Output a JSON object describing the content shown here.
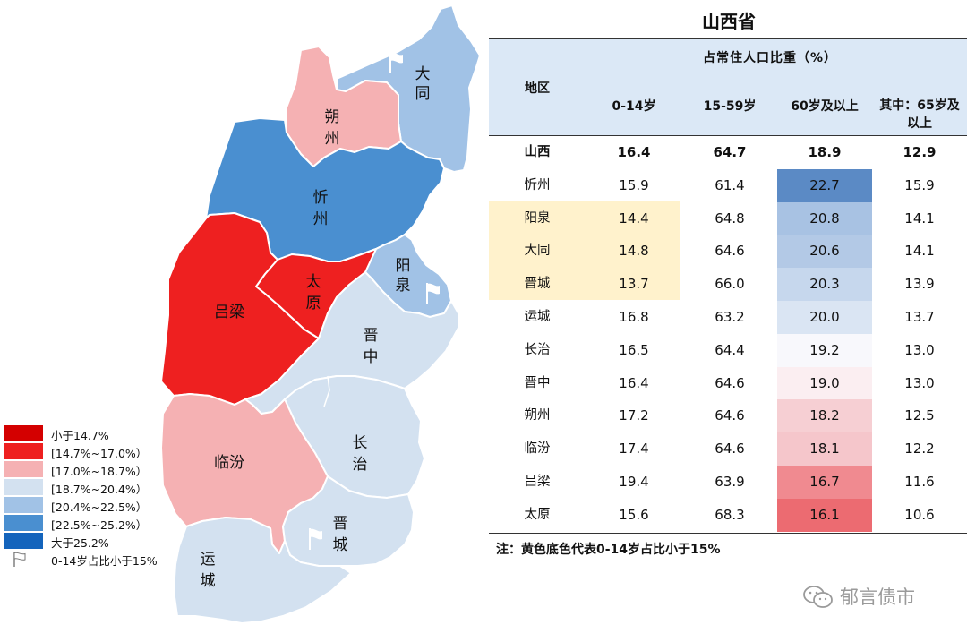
{
  "legend": {
    "items": [
      {
        "label": "小于14.7%",
        "color": "#d40000"
      },
      {
        "label": "[14.7%~17.0%）",
        "color": "#ee2020"
      },
      {
        "label": "[17.0%~18.7%）",
        "color": "#f5b1b3"
      },
      {
        "label": "[18.7%~20.4%）",
        "color": "#d3e1f0"
      },
      {
        "label": "[20.4%~22.5%）",
        "color": "#a1c2e6"
      },
      {
        "label": "[22.5%~25.2%）",
        "color": "#4a8fd0"
      },
      {
        "label": "大于25.2%",
        "color": "#1464bc"
      }
    ],
    "flag_label": "0-14岁占比小于15%"
  },
  "map": {
    "cities": [
      {
        "id": "datong",
        "name": "大同",
        "color": "#a1c2e6",
        "flag": true
      },
      {
        "id": "shuozhou",
        "name": "朔州",
        "color": "#f5b1b3",
        "flag": false
      },
      {
        "id": "xinzhou",
        "name": "忻州",
        "color": "#4a8fd0",
        "flag": false
      },
      {
        "id": "yangquan",
        "name": "阳泉",
        "color": "#a1c2e6",
        "flag": true
      },
      {
        "id": "taiyuan",
        "name": "太原",
        "color": "#ee2020",
        "flag": false
      },
      {
        "id": "lvliang",
        "name": "吕梁",
        "color": "#ee2020",
        "flag": false
      },
      {
        "id": "jinzhong",
        "name": "晋中",
        "color": "#d3e1f0",
        "flag": false
      },
      {
        "id": "changzhi",
        "name": "长治",
        "color": "#d3e1f0",
        "flag": false
      },
      {
        "id": "linfen",
        "name": "临汾",
        "color": "#f5b1b3",
        "flag": false
      },
      {
        "id": "jincheng",
        "name": "晋城",
        "color": "#d3e1f0",
        "flag": true
      },
      {
        "id": "yuncheng",
        "name": "运城",
        "color": "#d3e1f0",
        "flag": false
      }
    ]
  },
  "table": {
    "title": "山西省",
    "group_header": "占常住人口比重（%）",
    "region_header": "地区",
    "columns": [
      "0-14岁",
      "15-59岁",
      "60岁及以上",
      "其中：65岁及",
      "以上"
    ],
    "rows": [
      {
        "region": "山西",
        "a": "16.4",
        "b": "64.7",
        "c": "18.9",
        "d": "12.9",
        "c_color": "#ffffff",
        "highlight": false,
        "bold": true
      },
      {
        "region": "忻州",
        "a": "15.9",
        "b": "61.4",
        "c": "22.7",
        "d": "15.9",
        "c_color": "#5b8ac5",
        "highlight": false,
        "bold": false
      },
      {
        "region": "阳泉",
        "a": "14.4",
        "b": "64.8",
        "c": "20.8",
        "d": "14.1",
        "c_color": "#a8c2e3",
        "highlight": true,
        "bold": false
      },
      {
        "region": "大同",
        "a": "14.8",
        "b": "64.6",
        "c": "20.6",
        "d": "14.1",
        "c_color": "#b3c9e6",
        "highlight": true,
        "bold": false
      },
      {
        "region": "晋城",
        "a": "13.7",
        "b": "66.0",
        "c": "20.3",
        "d": "13.9",
        "c_color": "#c6d7ed",
        "highlight": true,
        "bold": false
      },
      {
        "region": "运城",
        "a": "16.8",
        "b": "63.2",
        "c": "20.0",
        "d": "13.7",
        "c_color": "#dae5f3",
        "highlight": false,
        "bold": false
      },
      {
        "region": "长治",
        "a": "16.5",
        "b": "64.4",
        "c": "19.2",
        "d": "13.0",
        "c_color": "#f8f8fc",
        "highlight": false,
        "bold": false
      },
      {
        "region": "晋中",
        "a": "16.4",
        "b": "64.6",
        "c": "19.0",
        "d": "13.0",
        "c_color": "#fbeef1",
        "highlight": false,
        "bold": false
      },
      {
        "region": "朔州",
        "a": "17.2",
        "b": "64.6",
        "c": "18.2",
        "d": "12.5",
        "c_color": "#f6cfd3",
        "highlight": false,
        "bold": false
      },
      {
        "region": "临汾",
        "a": "17.4",
        "b": "64.6",
        "c": "18.1",
        "d": "12.2",
        "c_color": "#f5c6cb",
        "highlight": false,
        "bold": false
      },
      {
        "region": "吕梁",
        "a": "19.4",
        "b": "63.9",
        "c": "16.7",
        "d": "11.6",
        "c_color": "#f08a90",
        "highlight": false,
        "bold": false
      },
      {
        "region": "太原",
        "a": "15.6",
        "b": "68.3",
        "c": "16.1",
        "d": "10.6",
        "c_color": "#ec6b71",
        "highlight": false,
        "bold": false
      }
    ],
    "highlight_color": "#fff2cc",
    "note": "注：黄色底色代表0-14岁占比小于15%"
  },
  "watermark": {
    "text": "郁言债市",
    "icon": "wechat-icon"
  }
}
